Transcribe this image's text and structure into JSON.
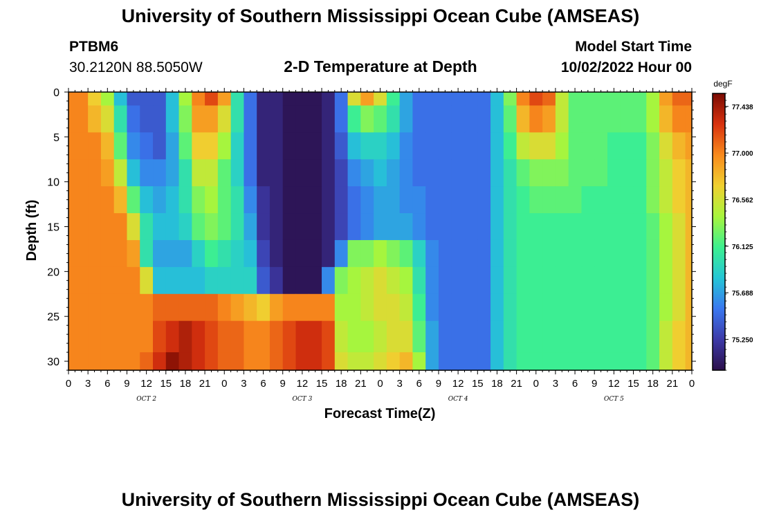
{
  "header": {
    "title": "University of Southern Mississippi Ocean Cube (AMSEAS)",
    "station_id": "PTBM6",
    "coordinates": "30.2120N  88.5050W",
    "model_start_label": "Model Start Time",
    "model_start_value": "10/02/2022 Hour 00"
  },
  "footer": {
    "title": "University of Southern Mississippi Ocean Cube (AMSEAS)"
  },
  "chart_data": {
    "type": "heatmap",
    "title": "2-D Temperature at Depth",
    "xlabel": "Forecast Time(Z)",
    "ylabel": "Depth (ft)",
    "x_units": "forecast hour",
    "xlim": [
      0,
      96
    ],
    "ylim": [
      0,
      31
    ],
    "y_inverted": true,
    "x_ticks": [
      0,
      3,
      6,
      9,
      12,
      15,
      18,
      21,
      24,
      27,
      30,
      33,
      36,
      39,
      42,
      45,
      48,
      51,
      54,
      57,
      60,
      63,
      66,
      69,
      72,
      75,
      78,
      81,
      84,
      87,
      90,
      93,
      96
    ],
    "x_tick_labels": [
      "0",
      "3",
      "6",
      "9",
      "12",
      "15",
      "18",
      "21",
      "0",
      "3",
      "6",
      "9",
      "12",
      "15",
      "18",
      "21",
      "0",
      "3",
      "6",
      "9",
      "12",
      "15",
      "18",
      "21",
      "0",
      "3",
      "6",
      "9",
      "12",
      "15",
      "18",
      "21",
      "0"
    ],
    "y_ticks": [
      0,
      5,
      10,
      15,
      20,
      25,
      30
    ],
    "y_tick_labels": [
      "0",
      "5",
      "10",
      "15",
      "20",
      "25",
      "30"
    ],
    "date_labels": [
      {
        "text": "OCT 2",
        "hour": 12
      },
      {
        "text": "OCT 3",
        "hour": 36
      },
      {
        "text": "OCT 4",
        "hour": 60
      },
      {
        "text": "OCT 5",
        "hour": 84
      }
    ],
    "colorbar": {
      "unit": "degF",
      "min": 74.96,
      "max": 77.56,
      "tick_values": [
        77.438,
        77.0,
        76.562,
        76.125,
        75.688,
        75.25
      ],
      "tick_labels": [
        "77.438",
        "77.000",
        "76.562",
        "76.125",
        "75.688",
        "75.250"
      ],
      "colors": [
        "#2b0f4a",
        "#3d3aa8",
        "#3a78f0",
        "#25c6d6",
        "#3df08f",
        "#a8f53d",
        "#f0d030",
        "#f88a1d",
        "#d8320f",
        "#7a0b03"
      ]
    },
    "depths_ft": [
      0,
      3,
      6,
      9,
      12,
      15,
      18,
      21,
      24,
      27,
      31
    ],
    "hours": [
      0,
      2,
      4,
      6,
      8,
      10,
      12,
      14,
      16,
      18,
      20,
      22,
      24,
      26,
      28,
      30,
      32,
      34,
      36,
      38,
      40,
      42,
      44,
      46,
      48,
      50,
      52,
      54,
      56,
      58,
      60,
      62,
      64,
      66,
      68,
      70,
      72,
      74,
      76,
      78,
      80,
      82,
      84,
      86,
      88,
      90,
      92,
      94,
      96
    ],
    "values_by_depth": [
      [
        77.0,
        77.0,
        76.7,
        76.4,
        75.8,
        75.4,
        75.4,
        75.4,
        75.8,
        76.4,
        77.0,
        77.2,
        76.9,
        76.0,
        75.5,
        75.1,
        75.1,
        75.0,
        75.0,
        75.0,
        75.1,
        75.5,
        76.6,
        76.9,
        76.6,
        76.1,
        75.7,
        75.5,
        75.5,
        75.5,
        75.5,
        75.5,
        75.5,
        75.8,
        76.3,
        77.0,
        77.2,
        77.1,
        76.5,
        76.2,
        76.2,
        76.2,
        76.2,
        76.2,
        76.2,
        76.4,
        76.9,
        77.1,
        77.1
      ],
      [
        77.0,
        77.0,
        76.8,
        76.6,
        76.0,
        75.5,
        75.4,
        75.4,
        75.8,
        76.3,
        76.9,
        76.9,
        76.6,
        76.0,
        75.5,
        75.1,
        75.1,
        75.0,
        75.0,
        75.0,
        75.1,
        75.5,
        76.1,
        76.3,
        76.2,
        76.0,
        75.7,
        75.5,
        75.5,
        75.5,
        75.5,
        75.5,
        75.5,
        75.8,
        76.2,
        76.8,
        77.0,
        76.9,
        76.5,
        76.2,
        76.2,
        76.2,
        76.2,
        76.2,
        76.2,
        76.4,
        76.8,
        77.0,
        77.0
      ],
      [
        77.0,
        77.0,
        77.0,
        76.8,
        76.2,
        75.6,
        75.5,
        75.4,
        75.7,
        76.2,
        76.7,
        76.7,
        76.4,
        75.9,
        75.5,
        75.1,
        75.1,
        75.0,
        75.0,
        75.0,
        75.1,
        75.4,
        75.8,
        75.9,
        75.9,
        75.8,
        75.6,
        75.5,
        75.5,
        75.5,
        75.5,
        75.5,
        75.5,
        75.8,
        76.1,
        76.5,
        76.6,
        76.6,
        76.4,
        76.2,
        76.2,
        76.2,
        76.1,
        76.1,
        76.1,
        76.3,
        76.6,
        76.8,
        76.9
      ],
      [
        77.0,
        77.0,
        77.0,
        76.9,
        76.5,
        75.8,
        75.6,
        75.6,
        75.7,
        76.0,
        76.5,
        76.5,
        76.2,
        75.9,
        75.5,
        75.1,
        75.1,
        75.0,
        75.0,
        75.0,
        75.1,
        75.3,
        75.6,
        75.7,
        75.8,
        75.7,
        75.6,
        75.5,
        75.5,
        75.5,
        75.5,
        75.5,
        75.5,
        75.8,
        76.0,
        76.2,
        76.3,
        76.3,
        76.3,
        76.2,
        76.2,
        76.2,
        76.1,
        76.1,
        76.1,
        76.3,
        76.5,
        76.7,
        76.8
      ],
      [
        77.0,
        77.0,
        77.0,
        77.0,
        76.8,
        76.2,
        75.8,
        75.7,
        75.8,
        76.0,
        76.3,
        76.4,
        76.2,
        76.0,
        75.6,
        75.2,
        75.1,
        75.0,
        75.0,
        75.0,
        75.1,
        75.3,
        75.5,
        75.6,
        75.7,
        75.7,
        75.6,
        75.6,
        75.5,
        75.5,
        75.5,
        75.5,
        75.5,
        75.8,
        76.0,
        76.1,
        76.2,
        76.2,
        76.2,
        76.2,
        76.1,
        76.1,
        76.1,
        76.1,
        76.1,
        76.3,
        76.5,
        76.7,
        76.8
      ],
      [
        77.0,
        77.0,
        77.0,
        77.0,
        77.0,
        76.6,
        76.0,
        75.8,
        75.8,
        75.9,
        76.2,
        76.3,
        76.2,
        76.0,
        75.7,
        75.2,
        75.1,
        75.0,
        75.0,
        75.0,
        75.1,
        75.3,
        75.5,
        75.6,
        75.7,
        75.7,
        75.7,
        75.6,
        75.5,
        75.5,
        75.5,
        75.5,
        75.5,
        75.8,
        76.0,
        76.1,
        76.1,
        76.1,
        76.1,
        76.1,
        76.1,
        76.1,
        76.1,
        76.1,
        76.1,
        76.2,
        76.4,
        76.6,
        76.8
      ],
      [
        77.0,
        77.0,
        77.0,
        77.0,
        77.0,
        76.9,
        76.0,
        75.7,
        75.7,
        75.7,
        75.9,
        76.1,
        76.0,
        75.9,
        75.8,
        75.3,
        75.1,
        75.0,
        75.0,
        75.0,
        75.1,
        75.6,
        76.3,
        76.3,
        76.4,
        76.3,
        76.2,
        75.9,
        75.6,
        75.5,
        75.5,
        75.5,
        75.5,
        75.8,
        76.0,
        76.1,
        76.1,
        76.1,
        76.1,
        76.1,
        76.1,
        76.1,
        76.1,
        76.1,
        76.1,
        76.2,
        76.4,
        76.6,
        76.8
      ],
      [
        77.0,
        77.0,
        77.0,
        77.0,
        77.0,
        77.0,
        76.6,
        75.8,
        75.8,
        75.8,
        75.8,
        75.9,
        75.9,
        75.9,
        75.9,
        75.4,
        75.2,
        75.0,
        75.0,
        75.0,
        75.6,
        76.3,
        76.4,
        76.5,
        76.6,
        76.5,
        76.4,
        76.0,
        75.6,
        75.5,
        75.5,
        75.5,
        75.5,
        75.8,
        76.0,
        76.1,
        76.1,
        76.1,
        76.1,
        76.1,
        76.1,
        76.1,
        76.1,
        76.1,
        76.1,
        76.2,
        76.4,
        76.6,
        76.8
      ],
      [
        77.0,
        77.0,
        77.0,
        77.0,
        77.0,
        77.0,
        77.0,
        77.1,
        77.1,
        77.1,
        77.1,
        77.1,
        77.0,
        76.9,
        76.8,
        76.7,
        76.9,
        77.0,
        77.0,
        77.0,
        77.0,
        76.4,
        76.4,
        76.5,
        76.6,
        76.6,
        76.5,
        76.1,
        75.6,
        75.5,
        75.5,
        75.5,
        75.5,
        75.8,
        76.0,
        76.1,
        76.1,
        76.1,
        76.1,
        76.1,
        76.1,
        76.1,
        76.1,
        76.1,
        76.1,
        76.2,
        76.4,
        76.6,
        76.8
      ],
      [
        77.0,
        77.0,
        77.0,
        77.0,
        77.0,
        77.0,
        77.0,
        77.2,
        77.3,
        77.4,
        77.3,
        77.2,
        77.1,
        77.1,
        77.0,
        77.0,
        77.1,
        77.2,
        77.3,
        77.3,
        77.2,
        76.5,
        76.4,
        76.4,
        76.5,
        76.6,
        76.6,
        76.2,
        75.7,
        75.5,
        75.5,
        75.5,
        75.5,
        75.8,
        76.0,
        76.1,
        76.1,
        76.1,
        76.1,
        76.1,
        76.1,
        76.1,
        76.1,
        76.1,
        76.1,
        76.2,
        76.5,
        76.7,
        76.8
      ],
      [
        77.0,
        77.0,
        77.0,
        77.0,
        77.0,
        77.0,
        77.1,
        77.3,
        77.5,
        77.4,
        77.3,
        77.2,
        77.1,
        77.1,
        77.0,
        77.0,
        77.1,
        77.2,
        77.3,
        77.3,
        77.2,
        76.6,
        76.5,
        76.5,
        76.6,
        76.7,
        76.8,
        76.4,
        75.7,
        75.5,
        75.5,
        75.5,
        75.5,
        75.8,
        76.0,
        76.1,
        76.1,
        76.1,
        76.1,
        76.1,
        76.1,
        76.1,
        76.1,
        76.1,
        76.1,
        76.2,
        76.5,
        76.7,
        76.8
      ]
    ]
  }
}
